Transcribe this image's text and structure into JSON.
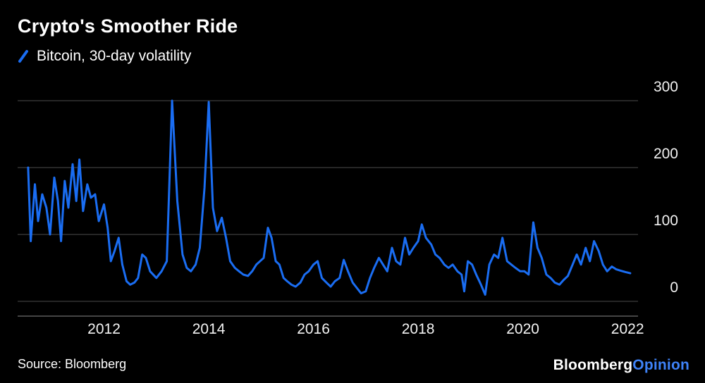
{
  "header": {
    "title": "Crypto's Smoother Ride",
    "legend_label": "Bitcoin, 30-day volatility"
  },
  "footer": {
    "source": "Source: Bloomberg",
    "logo_bloomberg": "Bloomberg",
    "logo_opinion": "Opinion"
  },
  "colors": {
    "background": "#000000",
    "line": "#1a6df2",
    "gridline": "#4d4d4d",
    "axis": "#8a8a8a",
    "text": "#ffffff",
    "tick_text": "#f2f2f2",
    "logo_opinion": "#3e82f7"
  },
  "chart_data": {
    "type": "line",
    "title": "Crypto's Smoother Ride",
    "series_name": "Bitcoin, 30-day volatility",
    "xlabel": "",
    "ylabel": "",
    "x_format": "decimal-year",
    "x_domain": [
      2010.35,
      2022.2
    ],
    "y_domain": [
      0,
      300
    ],
    "x_ticks": [
      2012,
      2014,
      2016,
      2018,
      2020,
      2022
    ],
    "y_ticks": [
      0,
      100,
      200,
      300
    ],
    "grid": true,
    "legend_position": "top-left",
    "points": [
      [
        2010.55,
        200
      ],
      [
        2010.6,
        90
      ],
      [
        2010.68,
        175
      ],
      [
        2010.74,
        120
      ],
      [
        2010.82,
        160
      ],
      [
        2010.9,
        140
      ],
      [
        2010.97,
        100
      ],
      [
        2011.05,
        185
      ],
      [
        2011.12,
        150
      ],
      [
        2011.18,
        90
      ],
      [
        2011.25,
        180
      ],
      [
        2011.32,
        140
      ],
      [
        2011.4,
        205
      ],
      [
        2011.47,
        150
      ],
      [
        2011.53,
        212
      ],
      [
        2011.6,
        135
      ],
      [
        2011.68,
        175
      ],
      [
        2011.75,
        155
      ],
      [
        2011.83,
        160
      ],
      [
        2011.9,
        120
      ],
      [
        2012.0,
        145
      ],
      [
        2012.07,
        110
      ],
      [
        2012.13,
        60
      ],
      [
        2012.2,
        75
      ],
      [
        2012.28,
        95
      ],
      [
        2012.35,
        55
      ],
      [
        2012.43,
        30
      ],
      [
        2012.5,
        25
      ],
      [
        2012.58,
        28
      ],
      [
        2012.65,
        35
      ],
      [
        2012.73,
        70
      ],
      [
        2012.8,
        65
      ],
      [
        2012.88,
        45
      ],
      [
        2013.0,
        35
      ],
      [
        2013.1,
        45
      ],
      [
        2013.2,
        60
      ],
      [
        2013.3,
        300
      ],
      [
        2013.4,
        150
      ],
      [
        2013.5,
        70
      ],
      [
        2013.58,
        50
      ],
      [
        2013.66,
        45
      ],
      [
        2013.75,
        55
      ],
      [
        2013.83,
        80
      ],
      [
        2013.92,
        170
      ],
      [
        2014.0,
        298
      ],
      [
        2014.08,
        140
      ],
      [
        2014.16,
        105
      ],
      [
        2014.25,
        125
      ],
      [
        2014.33,
        95
      ],
      [
        2014.41,
        60
      ],
      [
        2014.5,
        50
      ],
      [
        2014.58,
        45
      ],
      [
        2014.66,
        40
      ],
      [
        2014.75,
        38
      ],
      [
        2014.83,
        45
      ],
      [
        2014.91,
        55
      ],
      [
        2015.05,
        65
      ],
      [
        2015.13,
        110
      ],
      [
        2015.2,
        95
      ],
      [
        2015.28,
        60
      ],
      [
        2015.35,
        55
      ],
      [
        2015.43,
        35
      ],
      [
        2015.5,
        30
      ],
      [
        2015.58,
        25
      ],
      [
        2015.66,
        22
      ],
      [
        2015.75,
        28
      ],
      [
        2015.83,
        40
      ],
      [
        2015.91,
        45
      ],
      [
        2016.0,
        55
      ],
      [
        2016.08,
        60
      ],
      [
        2016.16,
        35
      ],
      [
        2016.25,
        28
      ],
      [
        2016.33,
        22
      ],
      [
        2016.41,
        30
      ],
      [
        2016.5,
        35
      ],
      [
        2016.58,
        62
      ],
      [
        2016.66,
        45
      ],
      [
        2016.75,
        28
      ],
      [
        2016.83,
        20
      ],
      [
        2016.91,
        12
      ],
      [
        2017.0,
        15
      ],
      [
        2017.08,
        35
      ],
      [
        2017.16,
        50
      ],
      [
        2017.25,
        65
      ],
      [
        2017.33,
        55
      ],
      [
        2017.41,
        45
      ],
      [
        2017.5,
        80
      ],
      [
        2017.58,
        60
      ],
      [
        2017.66,
        55
      ],
      [
        2017.75,
        95
      ],
      [
        2017.83,
        70
      ],
      [
        2017.91,
        80
      ],
      [
        2018.0,
        90
      ],
      [
        2018.07,
        115
      ],
      [
        2018.15,
        95
      ],
      [
        2018.25,
        85
      ],
      [
        2018.33,
        70
      ],
      [
        2018.41,
        65
      ],
      [
        2018.5,
        55
      ],
      [
        2018.58,
        50
      ],
      [
        2018.66,
        55
      ],
      [
        2018.75,
        45
      ],
      [
        2018.83,
        40
      ],
      [
        2018.88,
        15
      ],
      [
        2018.95,
        60
      ],
      [
        2019.03,
        55
      ],
      [
        2019.11,
        40
      ],
      [
        2019.2,
        25
      ],
      [
        2019.28,
        10
      ],
      [
        2019.36,
        55
      ],
      [
        2019.45,
        70
      ],
      [
        2019.53,
        65
      ],
      [
        2019.61,
        95
      ],
      [
        2019.7,
        60
      ],
      [
        2019.78,
        55
      ],
      [
        2019.86,
        50
      ],
      [
        2019.95,
        45
      ],
      [
        2020.03,
        45
      ],
      [
        2020.11,
        40
      ],
      [
        2020.2,
        118
      ],
      [
        2020.28,
        80
      ],
      [
        2020.36,
        65
      ],
      [
        2020.45,
        40
      ],
      [
        2020.53,
        35
      ],
      [
        2020.61,
        28
      ],
      [
        2020.7,
        25
      ],
      [
        2020.78,
        32
      ],
      [
        2020.86,
        38
      ],
      [
        2020.95,
        55
      ],
      [
        2021.03,
        70
      ],
      [
        2021.11,
        55
      ],
      [
        2021.2,
        80
      ],
      [
        2021.28,
        60
      ],
      [
        2021.36,
        90
      ],
      [
        2021.45,
        75
      ],
      [
        2021.53,
        55
      ],
      [
        2021.61,
        45
      ],
      [
        2021.7,
        52
      ],
      [
        2021.78,
        48
      ],
      [
        2021.86,
        46
      ],
      [
        2021.95,
        44
      ],
      [
        2022.05,
        42
      ]
    ]
  }
}
